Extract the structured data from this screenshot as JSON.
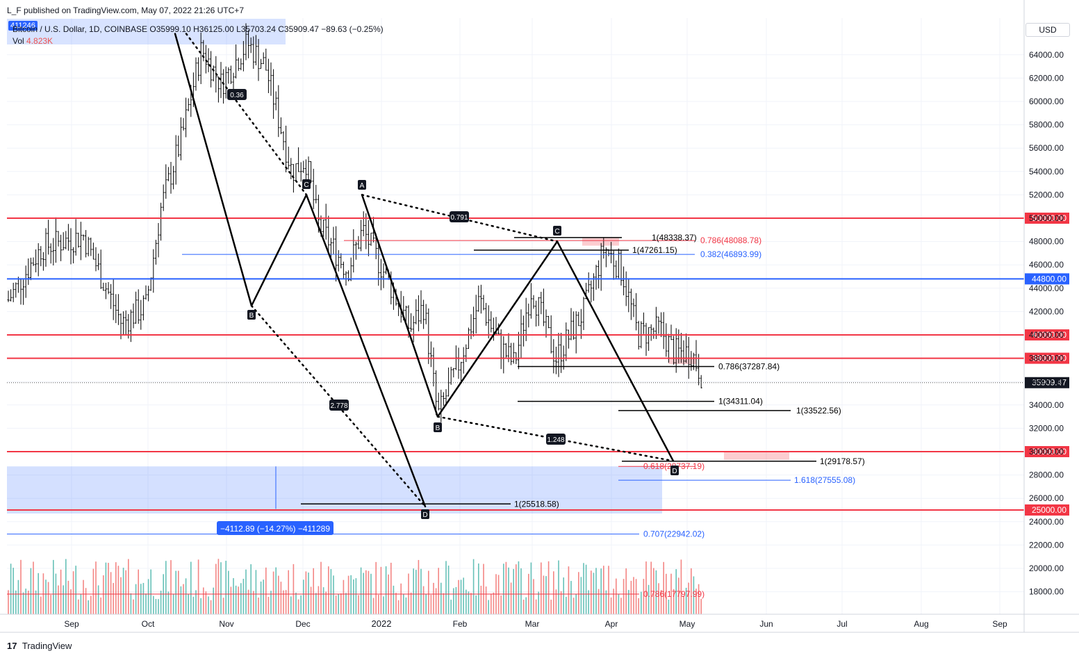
{
  "header": {
    "publisher": "L_F published on TradingView.com, May 07, 2022 21:26 UTC+7",
    "legend": "Bitcoin / U.S. Dollar, 1D, COINBASE  O35999.10  H36125.00  L35703.24  C35909.47  −89.63 (−0.25%)",
    "price_badge": "411246",
    "vol_label": "Vol",
    "vol_value": "4.823K",
    "currency": "USD"
  },
  "footer": {
    "logo": "17",
    "brand": "TradingView"
  },
  "chart_data": {
    "type": "candlestick",
    "x_labels": [
      "Sep",
      "Oct",
      "Nov",
      "Dec",
      "2022",
      "Feb",
      "Mar",
      "Apr",
      "May",
      "Jun",
      "Jul",
      "Aug",
      "Sep"
    ],
    "y_ticks": [
      64000,
      62000,
      60000,
      58000,
      56000,
      54000,
      52000,
      50000,
      48000,
      46000,
      44000,
      42000,
      40000,
      38000,
      36000,
      34000,
      32000,
      30000,
      28000,
      26000,
      24000,
      22000,
      20000,
      18000
    ],
    "ylim": [
      16000,
      66000
    ],
    "last_price": "35909.47",
    "colors": {
      "up": "#26a69a",
      "down": "#ef5350",
      "level": "#f23645",
      "blue": "#2962ff",
      "pattern": "#000000"
    },
    "horizontal_levels": [
      {
        "value": 50000,
        "label": "50000.00"
      },
      {
        "value": 44800,
        "label": "44800.00"
      },
      {
        "value": 40000,
        "label": "40000.00"
      },
      {
        "value": 38000,
        "label": "38000.00"
      },
      {
        "value": 30000,
        "label": "30000.00"
      },
      {
        "value": 25000,
        "label": "25000.00"
      }
    ],
    "fib_labels": [
      {
        "text": "1(48338.37)",
        "color": "#000000"
      },
      {
        "text": "0.786(48088.78)",
        "color": "#f23645"
      },
      {
        "text": "1(47261.15)",
        "color": "#000000"
      },
      {
        "text": "0.382(46893.99)",
        "color": "#2962ff"
      },
      {
        "text": "0.786(37287.84)",
        "color": "#000000"
      },
      {
        "text": "1(34311.04)",
        "color": "#000000"
      },
      {
        "text": "1(33522.56)",
        "color": "#000000"
      },
      {
        "text": "1(29178.57)",
        "color": "#000000"
      },
      {
        "text": "0.618(28737.19)",
        "color": "#f23645"
      },
      {
        "text": "1.618(27555.08)",
        "color": "#2962ff"
      },
      {
        "text": "1(25518.58)",
        "color": "#000000"
      },
      {
        "text": "0.707(22942.02)",
        "color": "#2962ff"
      },
      {
        "text": "0.786(17797.99)",
        "color": "#f23645"
      }
    ],
    "pattern_points": [
      "C",
      "B",
      "C",
      "A",
      "B",
      "C",
      "D",
      "D"
    ],
    "ratios": [
      "0.36",
      "0.791",
      "2.778",
      "1.248"
    ],
    "measure_label": "−4112.89 (−14.27%) −411289"
  }
}
